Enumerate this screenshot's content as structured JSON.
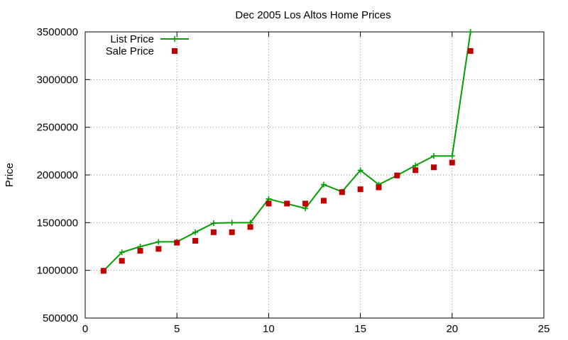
{
  "chart_data": {
    "type": "line",
    "title": "Dec 2005 Los Altos Home Prices",
    "xlabel": "",
    "ylabel": "Price",
    "xlim": [
      0,
      25
    ],
    "ylim": [
      500000,
      3500000
    ],
    "x_ticks": [
      0,
      5,
      10,
      15,
      20,
      25
    ],
    "y_ticks": [
      500000,
      1000000,
      1500000,
      2000000,
      2500000,
      3000000,
      3500000
    ],
    "grid": true,
    "legend_position": "top-left",
    "series": [
      {
        "name": "List Price",
        "style": "line-with-plus-markers",
        "color": "#00a000",
        "x": [
          1,
          2,
          3,
          4,
          5,
          6,
          7,
          8,
          9,
          10,
          11,
          12,
          13,
          14,
          15,
          16,
          17,
          18,
          19,
          20,
          21
        ],
        "values": [
          995000,
          1189000,
          1249000,
          1299000,
          1299000,
          1399000,
          1495000,
          1500000,
          1500000,
          1749000,
          1699000,
          1649000,
          1899000,
          1825000,
          2049000,
          1899000,
          1995000,
          2099000,
          2199000,
          2199000,
          3500000
        ]
      },
      {
        "name": "Sale Price",
        "style": "square-markers",
        "color": "#c00000",
        "x": [
          1,
          2,
          3,
          4,
          5,
          6,
          7,
          8,
          9,
          10,
          11,
          12,
          13,
          14,
          15,
          16,
          17,
          18,
          19,
          20,
          21
        ],
        "values": [
          995000,
          1100000,
          1205000,
          1225000,
          1290000,
          1310000,
          1400000,
          1400000,
          1455000,
          1700000,
          1700000,
          1700000,
          1730000,
          1820000,
          1850000,
          1870000,
          1995000,
          2050000,
          2080000,
          2130000,
          3300000
        ]
      }
    ]
  }
}
